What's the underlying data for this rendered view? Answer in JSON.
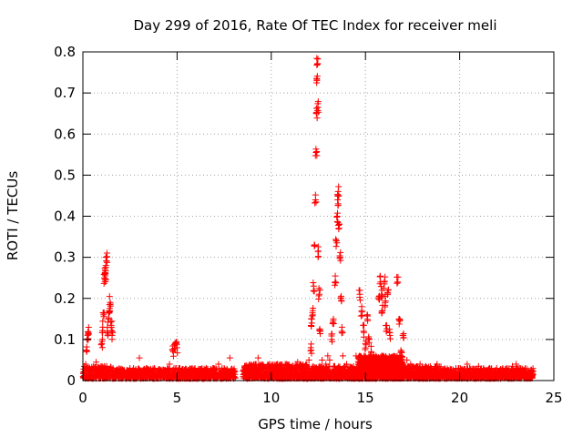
{
  "chart_data": {
    "type": "scatter",
    "title": "Day 299 of 2016, Rate Of TEC Index for receiver meli",
    "xlabel": "GPS time / hours",
    "ylabel": "ROTI / TECUs",
    "xlim": [
      0,
      25
    ],
    "ylim": [
      0,
      0.8
    ],
    "xticks": [
      0,
      5,
      10,
      15,
      20,
      25
    ],
    "yticks": [
      0,
      0.1,
      0.2,
      0.3,
      0.4,
      0.5,
      0.6,
      0.7,
      0.8
    ],
    "xtick_labels": [
      "0",
      "5",
      "10",
      "15",
      "20",
      "25"
    ],
    "ytick_labels": [
      "0",
      "0.1",
      "0.2",
      "0.3",
      "0.4",
      "0.5",
      "0.6",
      "0.7",
      "0.8"
    ],
    "grid": true,
    "marker": "+",
    "marker_color": "#ff0000",
    "series": [
      {
        "name": "ROTI",
        "points": [
          [
            0.1,
            0.02
          ],
          [
            0.15,
            0.04
          ],
          [
            0.2,
            0.07
          ],
          [
            0.25,
            0.11
          ],
          [
            0.3,
            0.115
          ],
          [
            0.35,
            0.03
          ],
          [
            0.4,
            0.02
          ],
          [
            0.5,
            0.015
          ],
          [
            0.6,
            0.025
          ],
          [
            0.7,
            0.045
          ],
          [
            0.8,
            0.02
          ],
          [
            0.9,
            0.03
          ],
          [
            1.0,
            0.09
          ],
          [
            1.05,
            0.13
          ],
          [
            1.1,
            0.16
          ],
          [
            1.15,
            0.25
          ],
          [
            1.18,
            0.255
          ],
          [
            1.2,
            0.26
          ],
          [
            1.22,
            0.28
          ],
          [
            1.25,
            0.3
          ],
          [
            1.3,
            0.12
          ],
          [
            1.35,
            0.15
          ],
          [
            1.4,
            0.17
          ],
          [
            1.45,
            0.19
          ],
          [
            1.5,
            0.13
          ],
          [
            1.55,
            0.11
          ],
          [
            1.6,
            0.03
          ],
          [
            1.8,
            0.02
          ],
          [
            2.0,
            0.025
          ],
          [
            2.2,
            0.02
          ],
          [
            2.5,
            0.03
          ],
          [
            2.8,
            0.02
          ],
          [
            3.0,
            0.055
          ],
          [
            3.2,
            0.025
          ],
          [
            3.5,
            0.02
          ],
          [
            3.8,
            0.03
          ],
          [
            4.0,
            0.02
          ],
          [
            4.3,
            0.025
          ],
          [
            4.6,
            0.04
          ],
          [
            4.8,
            0.07
          ],
          [
            4.9,
            0.09
          ],
          [
            5.0,
            0.08
          ],
          [
            5.1,
            0.03
          ],
          [
            5.5,
            0.02
          ],
          [
            5.8,
            0.03
          ],
          [
            6.0,
            0.02
          ],
          [
            6.3,
            0.025
          ],
          [
            6.6,
            0.02
          ],
          [
            6.9,
            0.03
          ],
          [
            7.2,
            0.04
          ],
          [
            7.5,
            0.03
          ],
          [
            7.8,
            0.055
          ],
          [
            8.0,
            0.02
          ],
          [
            8.6,
            0.02
          ],
          [
            9.0,
            0.035
          ],
          [
            9.3,
            0.055
          ],
          [
            9.6,
            0.03
          ],
          [
            9.9,
            0.04
          ],
          [
            10.2,
            0.03
          ],
          [
            10.5,
            0.02
          ],
          [
            10.8,
            0.04
          ],
          [
            11.1,
            0.03
          ],
          [
            11.4,
            0.045
          ],
          [
            11.7,
            0.03
          ],
          [
            12.0,
            0.05
          ],
          [
            12.1,
            0.08
          ],
          [
            12.15,
            0.14
          ],
          [
            12.2,
            0.17
          ],
          [
            12.25,
            0.23
          ],
          [
            12.3,
            0.33
          ],
          [
            12.35,
            0.44
          ],
          [
            12.38,
            0.555
          ],
          [
            12.4,
            0.65
          ],
          [
            12.42,
            0.73
          ],
          [
            12.45,
            0.77
          ],
          [
            12.48,
            0.665
          ],
          [
            12.5,
            0.315
          ],
          [
            12.55,
            0.21
          ],
          [
            12.6,
            0.12
          ],
          [
            12.7,
            0.05
          ],
          [
            12.8,
            0.03
          ],
          [
            12.9,
            0.04
          ],
          [
            13.0,
            0.06
          ],
          [
            13.1,
            0.05
          ],
          [
            13.2,
            0.1
          ],
          [
            13.3,
            0.15
          ],
          [
            13.4,
            0.24
          ],
          [
            13.45,
            0.34
          ],
          [
            13.5,
            0.4
          ],
          [
            13.52,
            0.44
          ],
          [
            13.55,
            0.46
          ],
          [
            13.6,
            0.38
          ],
          [
            13.65,
            0.3
          ],
          [
            13.7,
            0.2
          ],
          [
            13.75,
            0.13
          ],
          [
            13.8,
            0.06
          ],
          [
            14.0,
            0.04
          ],
          [
            14.2,
            0.03
          ],
          [
            14.5,
            0.06
          ],
          [
            14.7,
            0.21
          ],
          [
            14.8,
            0.17
          ],
          [
            14.9,
            0.12
          ],
          [
            15.0,
            0.09
          ],
          [
            15.1,
            0.16
          ],
          [
            15.2,
            0.1
          ],
          [
            15.3,
            0.07
          ],
          [
            15.5,
            0.05
          ],
          [
            15.7,
            0.2
          ],
          [
            15.8,
            0.24
          ],
          [
            15.85,
            0.21
          ],
          [
            15.9,
            0.17
          ],
          [
            16.0,
            0.24
          ],
          [
            16.05,
            0.19
          ],
          [
            16.1,
            0.12
          ],
          [
            16.2,
            0.22
          ],
          [
            16.3,
            0.11
          ],
          [
            16.5,
            0.06
          ],
          [
            16.7,
            0.24
          ],
          [
            16.8,
            0.15
          ],
          [
            16.9,
            0.07
          ],
          [
            17.0,
            0.11
          ],
          [
            17.2,
            0.05
          ],
          [
            17.4,
            0.04
          ],
          [
            17.6,
            0.03
          ],
          [
            17.9,
            0.04
          ],
          [
            18.2,
            0.035
          ],
          [
            18.5,
            0.03
          ],
          [
            18.8,
            0.04
          ],
          [
            19.0,
            0.02
          ],
          [
            19.5,
            0.02
          ],
          [
            19.8,
            0.03
          ],
          [
            20.1,
            0.025
          ],
          [
            20.4,
            0.04
          ],
          [
            20.7,
            0.02
          ],
          [
            21.0,
            0.035
          ],
          [
            21.3,
            0.02
          ],
          [
            21.6,
            0.03
          ],
          [
            21.9,
            0.025
          ],
          [
            22.2,
            0.02
          ],
          [
            22.5,
            0.03
          ],
          [
            22.8,
            0.035
          ],
          [
            23.0,
            0.04
          ],
          [
            23.2,
            0.03
          ],
          [
            23.5,
            0.02
          ],
          [
            23.8,
            0.015
          ]
        ]
      }
    ],
    "noise_bands": [
      {
        "x_start": 0.0,
        "x_end": 1.6,
        "y_max": 0.03,
        "density": 220
      },
      {
        "x_start": 1.6,
        "x_end": 8.1,
        "y_max": 0.025,
        "density": 900
      },
      {
        "x_start": 8.5,
        "x_end": 12.0,
        "y_max": 0.035,
        "density": 600
      },
      {
        "x_start": 12.0,
        "x_end": 14.6,
        "y_max": 0.03,
        "density": 400
      },
      {
        "x_start": 14.6,
        "x_end": 17.0,
        "y_max": 0.055,
        "density": 900
      },
      {
        "x_start": 17.0,
        "x_end": 19.1,
        "y_max": 0.03,
        "density": 350
      },
      {
        "x_start": 19.1,
        "x_end": 23.9,
        "y_max": 0.025,
        "density": 700
      }
    ]
  }
}
